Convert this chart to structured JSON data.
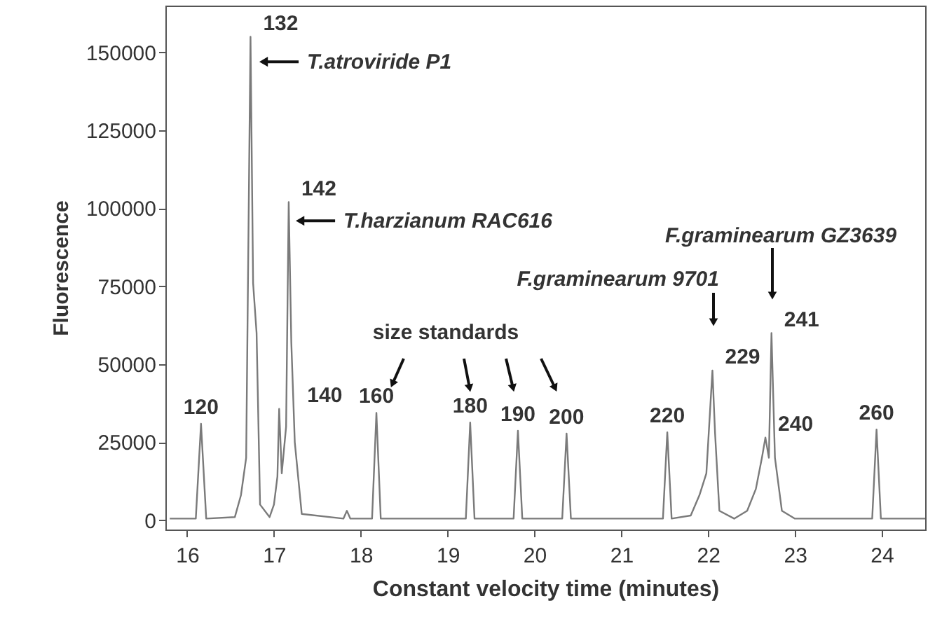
{
  "chart_data": {
    "type": "line",
    "xlabel": "Constant velocity time (minutes)",
    "ylabel": "Fluorescence",
    "xlim": [
      15.75,
      24.5
    ],
    "xticks": [
      16,
      17,
      18,
      19,
      20,
      21,
      22,
      23,
      24
    ],
    "ylim": [
      -3000,
      165000
    ],
    "yticks": [
      0,
      25000,
      50000,
      75000,
      100000,
      125000,
      150000
    ],
    "grid": false,
    "marker": "none",
    "line_style": "solid",
    "x": [
      15.8,
      16.1,
      16.16,
      16.22,
      16.55,
      16.62,
      16.68,
      16.73,
      16.76,
      16.8,
      16.84,
      16.95,
      17.0,
      17.04,
      17.06,
      17.09,
      17.14,
      17.17,
      17.2,
      17.24,
      17.32,
      17.8,
      17.84,
      17.88,
      18.13,
      18.18,
      18.23,
      19.21,
      19.26,
      19.31,
      19.76,
      19.81,
      19.86,
      20.32,
      20.37,
      20.42,
      21.48,
      21.53,
      21.58,
      21.8,
      21.9,
      21.98,
      22.05,
      22.08,
      22.13,
      22.3,
      22.45,
      22.55,
      22.62,
      22.66,
      22.7,
      22.73,
      22.77,
      22.85,
      23.0,
      23.89,
      23.94,
      23.99,
      24.5
    ],
    "series": [
      {
        "color": "#7a7a7a",
        "values": [
          500,
          500,
          30900,
          500,
          1000,
          8000,
          20000,
          155000,
          76000,
          60000,
          5000,
          1000,
          5000,
          14000,
          35700,
          15000,
          30000,
          102000,
          57000,
          25000,
          2000,
          500,
          3000,
          500,
          500,
          34400,
          500,
          500,
          31300,
          500,
          500,
          28700,
          500,
          500,
          27800,
          500,
          500,
          28200,
          500,
          1500,
          8000,
          15000,
          48000,
          28000,
          3000,
          500,
          3000,
          10000,
          20000,
          26500,
          20000,
          60000,
          20000,
          3000,
          500,
          500,
          29100,
          500,
          500
        ]
      }
    ],
    "annotations": [
      {
        "text": "120",
        "x": 16.16,
        "y": 30900
      },
      {
        "text": "132",
        "x": 16.73,
        "y": 155000
      },
      {
        "text": "140",
        "x": 17.06,
        "y": 35700
      },
      {
        "text": "142",
        "x": 17.17,
        "y": 102000
      },
      {
        "text": "160",
        "x": 18.18,
        "y": 34400
      },
      {
        "text": "180",
        "x": 19.26,
        "y": 31300
      },
      {
        "text": "190",
        "x": 19.81,
        "y": 28700
      },
      {
        "text": "200",
        "x": 20.37,
        "y": 27800
      },
      {
        "text": "220",
        "x": 21.53,
        "y": 28200
      },
      {
        "text": "229",
        "x": 22.05,
        "y": 48000
      },
      {
        "text": "240",
        "x": 22.66,
        "y": 26500
      },
      {
        "text": "241",
        "x": 22.73,
        "y": 60000
      },
      {
        "text": "260",
        "x": 23.94,
        "y": 29100
      },
      {
        "text": "T.atroviride P1",
        "x": 16.8,
        "y": 147000
      },
      {
        "text": "T.harzianum RAC616",
        "x": 17.22,
        "y": 96000
      },
      "F.graminearum 9701",
      "F.graminearum GZ3639",
      "size standards"
    ]
  }
}
